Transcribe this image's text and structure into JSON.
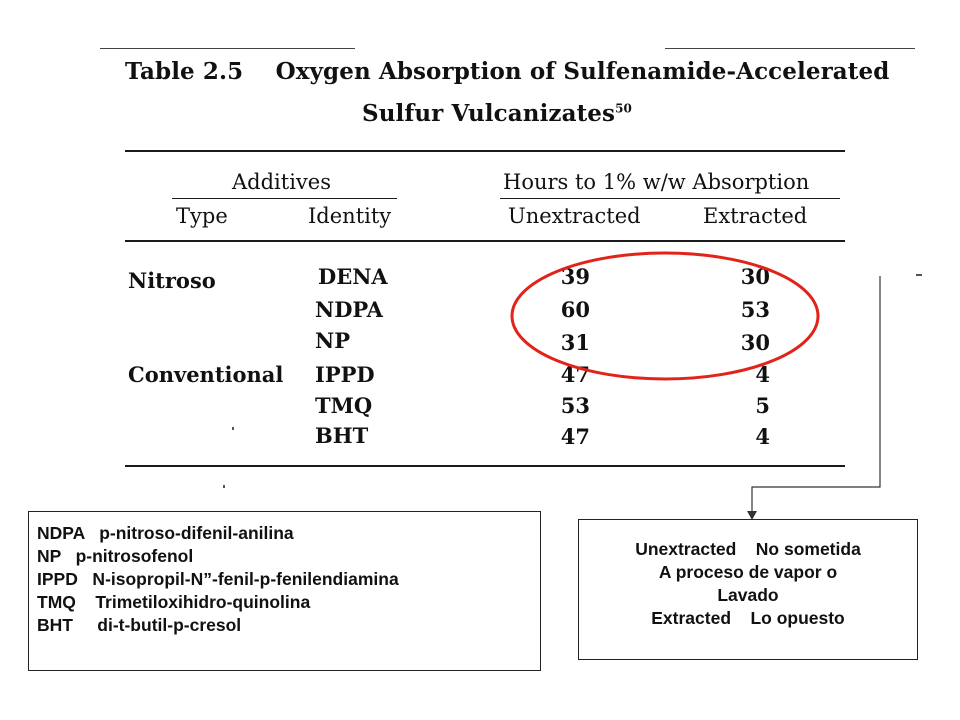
{
  "table": {
    "title_line1": "Table 2.5    Oxygen Absorption of Sulfenamide-Accelerated",
    "title_line2": "Sulfur Vulcanizates",
    "title_superscript": "50",
    "group_left": "Additives",
    "group_right": "Hours to 1% w/w Absorption",
    "col_type": "Type",
    "col_identity": "Identity",
    "col_unextracted": "Unextracted",
    "col_extracted": "Extracted",
    "rows": [
      {
        "type": "Nitroso",
        "identity": "DENA",
        "unextracted": "39",
        "extracted": "30"
      },
      {
        "type": "",
        "identity": "NDPA",
        "unextracted": "60",
        "extracted": "53"
      },
      {
        "type": "",
        "identity": "NP",
        "unextracted": "31",
        "extracted": "30"
      },
      {
        "type": "Conventional",
        "identity": "IPPD",
        "unextracted": "47",
        "extracted": "4"
      },
      {
        "type": "",
        "identity": "TMQ",
        "unextracted": "53",
        "extracted": "5"
      },
      {
        "type": "",
        "identity": "BHT",
        "unextracted": "47",
        "extracted": "4"
      }
    ]
  },
  "colors": {
    "highlight_ellipse": "#e2231a",
    "ink": "#111111"
  },
  "legend_box": {
    "lines": [
      "NDPA   p-nitroso-difenil-anilina",
      "NP   p-nitrosofenol",
      "IPPD   N-isopropil-N”-fenil-p-fenilendiamina",
      "TMQ    Trimetiloxihidro-quinolina",
      "BHT     di-t-butil-p-cresol"
    ]
  },
  "definition_box": {
    "lines": [
      "Unextracted    No sometida",
      "A proceso de vapor o",
      "Lavado",
      "Extracted    Lo opuesto"
    ]
  }
}
